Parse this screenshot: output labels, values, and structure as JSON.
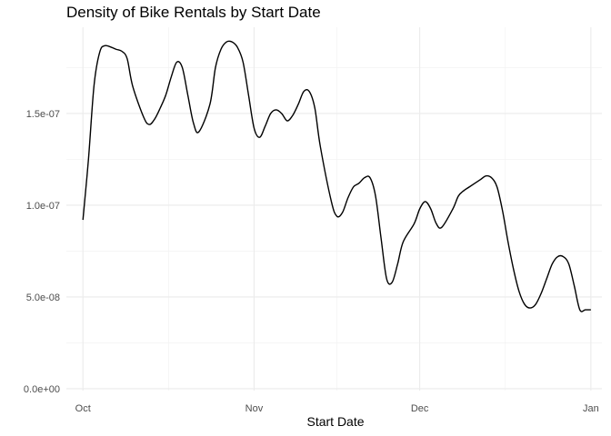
{
  "chart_data": {
    "type": "line",
    "title": "Density of Bike Rentals by Start Date",
    "xlabel": "Start Date",
    "ylabel": "",
    "x_ticks": [
      {
        "label": "Oct",
        "date": "2013-10-01"
      },
      {
        "label": "Nov",
        "date": "2013-11-01"
      },
      {
        "label": "Dec",
        "date": "2013-12-01"
      },
      {
        "label": "Jan",
        "date": "2014-01-01"
      }
    ],
    "xlim": [
      "2013-09-28",
      "2014-01-03"
    ],
    "y_ticks": [
      {
        "label": "0.0e+00",
        "value": 0
      },
      {
        "label": "5.0e-08",
        "value": 5e-08
      },
      {
        "label": "1.0e-07",
        "value": 1e-07
      },
      {
        "label": "1.5e-07",
        "value": 1.5e-07
      }
    ],
    "ylim": [
      -1e-09,
      1.97e-07
    ],
    "grid": true,
    "legend": "none",
    "line_color": "#000000",
    "series": [
      {
        "x": [
          "2013-10-01",
          "2013-10-02",
          "2013-10-03",
          "2013-10-04",
          "2013-10-05",
          "2013-10-07",
          "2013-10-08",
          "2013-10-09",
          "2013-10-10",
          "2013-10-12",
          "2013-10-13",
          "2013-10-14",
          "2013-10-15",
          "2013-10-16",
          "2013-10-17",
          "2013-10-18",
          "2013-10-19",
          "2013-10-20",
          "2013-10-21",
          "2013-10-22",
          "2013-10-24",
          "2013-10-25",
          "2013-10-26",
          "2013-10-27",
          "2013-10-28",
          "2013-10-29",
          "2013-10-30",
          "2013-10-31",
          "2013-11-01",
          "2013-11-02",
          "2013-11-03",
          "2013-11-04",
          "2013-11-05",
          "2013-11-06",
          "2013-11-07",
          "2013-11-08",
          "2013-11-09",
          "2013-11-10",
          "2013-11-11",
          "2013-11-12",
          "2013-11-13",
          "2013-11-15",
          "2013-11-16",
          "2013-11-17",
          "2013-11-18",
          "2013-11-19",
          "2013-11-20",
          "2013-11-21",
          "2013-11-22",
          "2013-11-23",
          "2013-11-24",
          "2013-11-25",
          "2013-11-26",
          "2013-11-27",
          "2013-11-28",
          "2013-11-30",
          "2013-12-01",
          "2013-12-02",
          "2013-12-03",
          "2013-12-04",
          "2013-12-05",
          "2013-12-07",
          "2013-12-08",
          "2013-12-09",
          "2013-12-10",
          "2013-12-12",
          "2013-12-13",
          "2013-12-14",
          "2013-12-15",
          "2013-12-16",
          "2013-12-17",
          "2013-12-18",
          "2013-12-19",
          "2013-12-20",
          "2013-12-21",
          "2013-12-22",
          "2013-12-23",
          "2013-12-24",
          "2013-12-25",
          "2013-12-26",
          "2013-12-27",
          "2013-12-28",
          "2013-12-29",
          "2013-12-30",
          "2013-12-31",
          "2014-01-01"
        ],
        "y": [
          9.2e-08,
          1.25e-07,
          1.65e-07,
          1.83e-07,
          1.87e-07,
          1.85e-07,
          1.84e-07,
          1.8e-07,
          1.65e-07,
          1.48e-07,
          1.44e-07,
          1.47e-07,
          1.53e-07,
          1.6e-07,
          1.7e-07,
          1.78e-07,
          1.75e-07,
          1.6e-07,
          1.45e-07,
          1.4e-07,
          1.55e-07,
          1.75e-07,
          1.85e-07,
          1.89e-07,
          1.89e-07,
          1.86e-07,
          1.78e-07,
          1.6e-07,
          1.42e-07,
          1.37e-07,
          1.43e-07,
          1.5e-07,
          1.52e-07,
          1.5e-07,
          1.46e-07,
          1.49e-07,
          1.55e-07,
          1.62e-07,
          1.62e-07,
          1.53e-07,
          1.32e-07,
          1.02e-07,
          9.4e-08,
          9.6e-08,
          1.04e-07,
          1.1e-07,
          1.12e-07,
          1.15e-07,
          1.15e-07,
          1.05e-07,
          8.2e-08,
          6e-08,
          5.8e-08,
          6.8e-08,
          8e-08,
          9e-08,
          9.8e-08,
          1.02e-07,
          9.8e-08,
          9e-08,
          8.8e-08,
          9.8e-08,
          1.05e-07,
          1.08e-07,
          1.1e-07,
          1.14e-07,
          1.16e-07,
          1.15e-07,
          1.1e-07,
          9.7e-08,
          8e-08,
          6.5e-08,
          5.3e-08,
          4.6e-08,
          4.4e-08,
          4.6e-08,
          5.2e-08,
          6e-08,
          6.8e-08,
          7.2e-08,
          7.2e-08,
          6.8e-08,
          5.6e-08,
          4.3e-08,
          4.3e-08,
          4.3e-08
        ]
      }
    ]
  }
}
